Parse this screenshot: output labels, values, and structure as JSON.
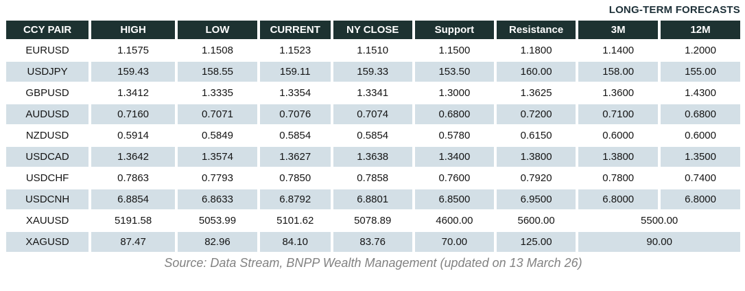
{
  "title": "LONG-TERM FORECASTS",
  "table": {
    "headers": [
      "CCY PAIR",
      "HIGH",
      "LOW",
      "CURRENT",
      "NY CLOSE",
      "Support",
      "Resistance",
      "3M",
      "12M"
    ],
    "rows": [
      {
        "pair": "EURUSD",
        "values": [
          "1.1575",
          "1.1508",
          "1.1523",
          "1.1510",
          "1.1500",
          "1.1800",
          "1.1400",
          "1.2000"
        ]
      },
      {
        "pair": "USDJPY",
        "values": [
          "159.43",
          "158.55",
          "159.11",
          "159.33",
          "153.50",
          "160.00",
          "158.00",
          "155.00"
        ]
      },
      {
        "pair": "GBPUSD",
        "values": [
          "1.3412",
          "1.3335",
          "1.3354",
          "1.3341",
          "1.3000",
          "1.3625",
          "1.3600",
          "1.4300"
        ]
      },
      {
        "pair": "AUDUSD",
        "values": [
          "0.7160",
          "0.7071",
          "0.7076",
          "0.7074",
          "0.6800",
          "0.7200",
          "0.7100",
          "0.6800"
        ]
      },
      {
        "pair": "NZDUSD",
        "values": [
          "0.5914",
          "0.5849",
          "0.5854",
          "0.5854",
          "0.5780",
          "0.6150",
          "0.6000",
          "0.6000"
        ]
      },
      {
        "pair": "USDCAD",
        "values": [
          "1.3642",
          "1.3574",
          "1.3627",
          "1.3638",
          "1.3400",
          "1.3800",
          "1.3800",
          "1.3500"
        ]
      },
      {
        "pair": "USDCHF",
        "values": [
          "0.7863",
          "0.7793",
          "0.7850",
          "0.7858",
          "0.7600",
          "0.7920",
          "0.7800",
          "0.7400"
        ]
      },
      {
        "pair": "USDCNH",
        "values": [
          "6.8854",
          "6.8633",
          "6.8792",
          "6.8801",
          "6.8500",
          "6.9500",
          "6.8000",
          "6.8000"
        ]
      },
      {
        "pair": "XAUUSD",
        "values": [
          "5191.58",
          "5053.99",
          "5101.62",
          "5078.89",
          "4600.00",
          "5600.00"
        ],
        "merged_forecast": "5500.00"
      },
      {
        "pair": "XAGUSD",
        "values": [
          "87.47",
          "82.96",
          "84.10",
          "83.76",
          "70.00",
          "125.00"
        ],
        "merged_forecast": "90.00"
      }
    ]
  },
  "footer": {
    "source": "Source: Data Stream, BNPP Wealth Management (updated on 13 March 26)"
  },
  "colors": {
    "header_bg": "#1d3231",
    "alt_row_bg": "#d3dfe6",
    "title_color": "#1d3038",
    "source_color": "#828282"
  }
}
